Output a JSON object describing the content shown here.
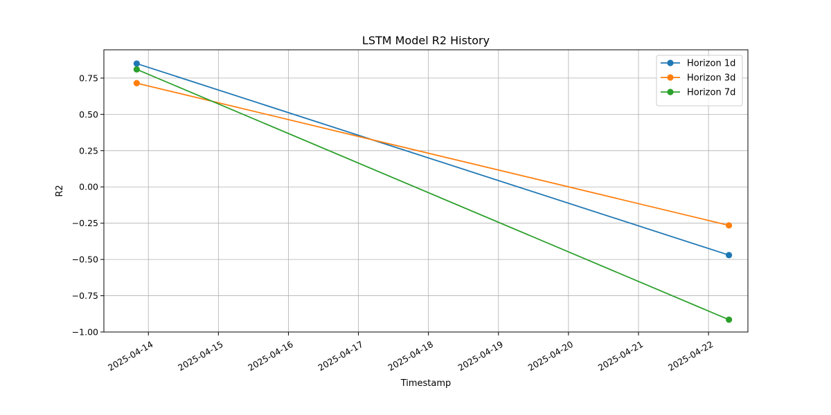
{
  "chart_data": {
    "type": "line",
    "title": "LSTM Model R2 History",
    "xlabel": "Timestamp",
    "ylabel": "R2",
    "x_ticks": [
      "2025-04-14",
      "2025-04-15",
      "2025-04-16",
      "2025-04-17",
      "2025-04-18",
      "2025-04-19",
      "2025-04-20",
      "2025-04-21",
      "2025-04-22"
    ],
    "y_ticks": [
      "−1.00",
      "−0.75",
      "−0.50",
      "−0.25",
      "0.00",
      "0.25",
      "0.50",
      "0.75"
    ],
    "y_tick_values": [
      -1.0,
      -0.75,
      -0.5,
      -0.25,
      0.0,
      0.25,
      0.5,
      0.75
    ],
    "xlim": [
      "2025-04-13T08:45",
      "2025-04-22T13:30"
    ],
    "ylim": [
      -1.0,
      0.945
    ],
    "grid": true,
    "legend_position": "top-right",
    "series": [
      {
        "name": "Horizon 1d",
        "color": "#1f77b4",
        "points": [
          {
            "x": "2025-04-13T20:00",
            "y": 0.85
          },
          {
            "x": "2025-04-22T07:00",
            "y": -0.47
          }
        ]
      },
      {
        "name": "Horizon 3d",
        "color": "#ff7f0e",
        "points": [
          {
            "x": "2025-04-13T20:00",
            "y": 0.715
          },
          {
            "x": "2025-04-22T07:00",
            "y": -0.265
          }
        ]
      },
      {
        "name": "Horizon 7d",
        "color": "#2ca02c",
        "points": [
          {
            "x": "2025-04-13T20:00",
            "y": 0.81
          },
          {
            "x": "2025-04-22T07:00",
            "y": -0.915
          }
        ]
      }
    ]
  }
}
